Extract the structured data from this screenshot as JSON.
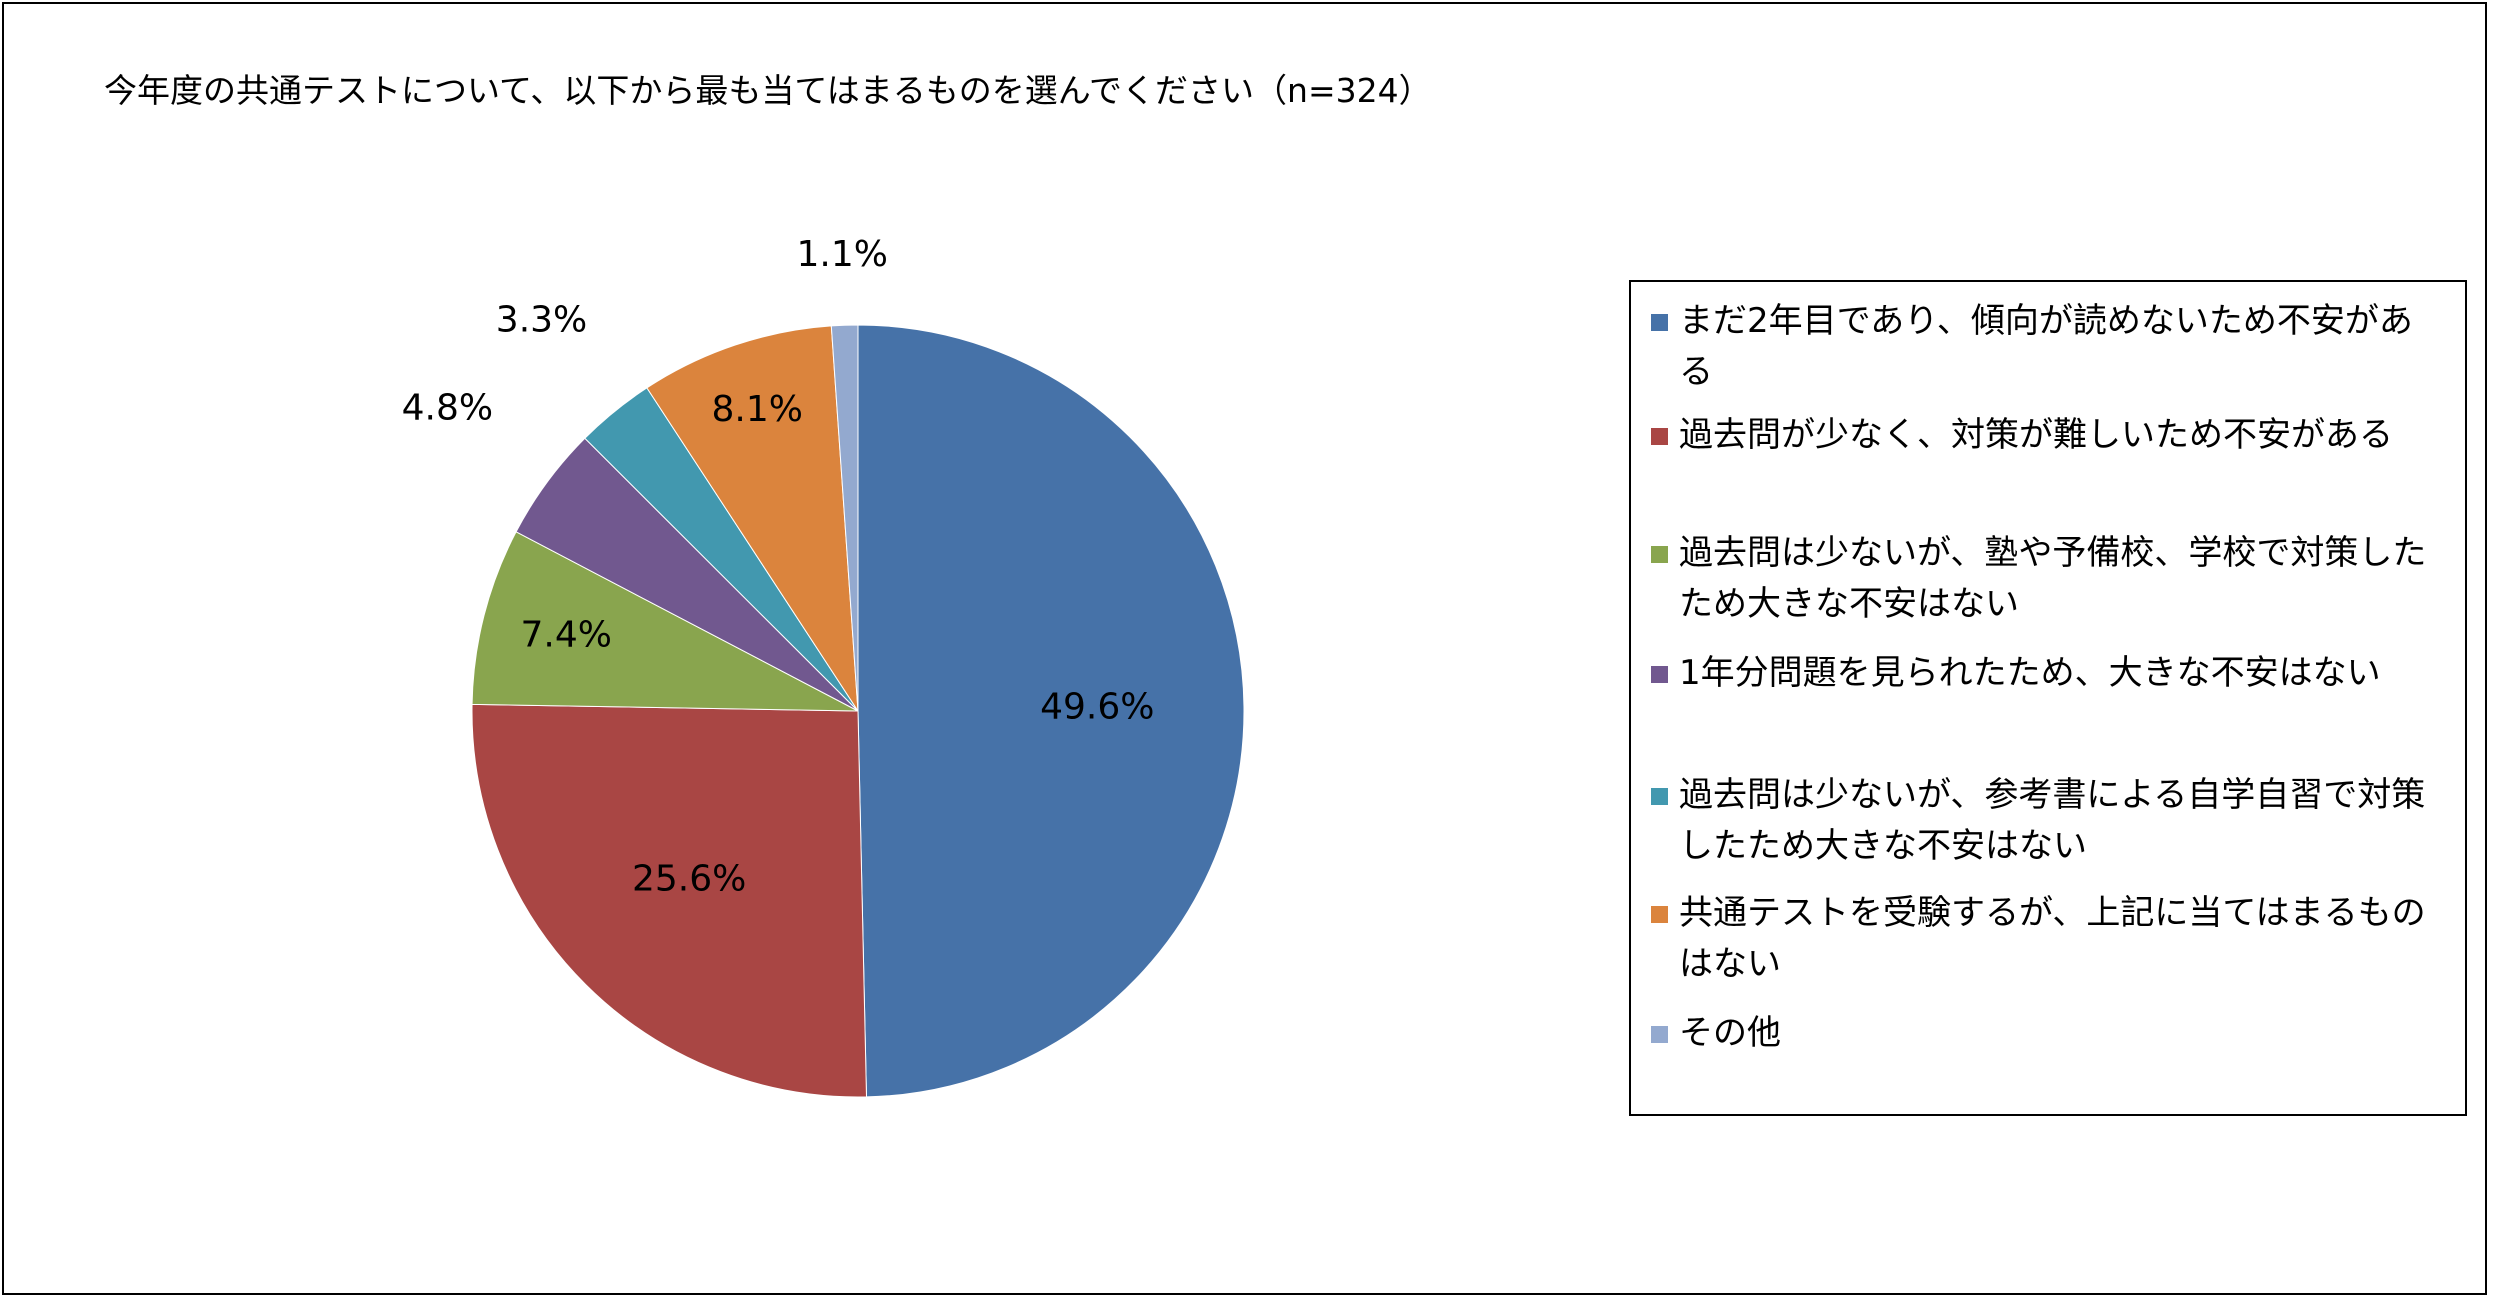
{
  "chart_data": {
    "type": "pie",
    "title": "今年度の共通テストについて、以下から最も当てはまるものを選んでください（n=324）",
    "categories": [
      "まだ2年目であり、傾向が読めないため不安がある",
      "過去問が少なく、対策が難しいため不安がある",
      "過去問は少ないが、塾や予備校、学校で対策したため大きな不安はない",
      "1年分問題を見られたため、大きな不安はない",
      "過去問は少ないが、参考書による自学自習で対策したため大きな不安はない",
      "共通テストを受験するが、上記に当てはまるものはない",
      "その他"
    ],
    "values": [
      49.6,
      25.6,
      7.4,
      4.8,
      3.3,
      8.1,
      1.1
    ],
    "labels": [
      "49.6%",
      "25.6%",
      "7.4%",
      "4.8%",
      "3.3%",
      "8.1%",
      "1.1%"
    ],
    "colors": [
      "#4672A8",
      "#A94644",
      "#89A54E",
      "#71588F",
      "#4298AF",
      "#DB843D",
      "#93A9CF"
    ],
    "legend_position": "right"
  },
  "legend": {
    "items": [
      {
        "text": "まだ2年目であり、傾向が読めないため不安がある",
        "color": "#4672A8"
      },
      {
        "text": "過去問が少なく、対策が難しいため不安がある",
        "color": "#A94644"
      },
      {
        "text": "過去問は少ないが、塾や予備校、学校で対策したため大きな不安はない",
        "color": "#89A54E"
      },
      {
        "text": "1年分問題を見られたため、大きな不安はない",
        "color": "#71588F"
      },
      {
        "text": "過去問は少ないが、参考書による自学自習で対策したため大きな不安はない",
        "color": "#4298AF"
      },
      {
        "text": "共通テストを受験するが、上記に当てはまるものはない",
        "color": "#DB843D"
      },
      {
        "text": "その他",
        "color": "#93A9CF"
      }
    ]
  }
}
